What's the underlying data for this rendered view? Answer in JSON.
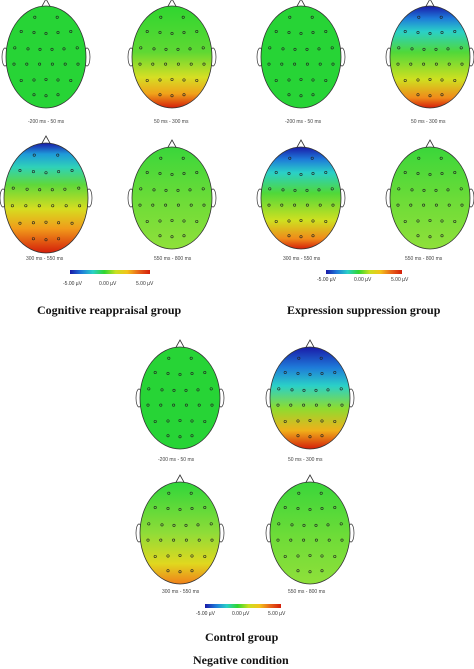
{
  "groups": [
    {
      "title": "Cognitive reappraisal group",
      "maps": [
        {
          "time_window": "-200 ms - 50 ms",
          "pattern": "neutral"
        },
        {
          "time_window": "50 ms - 300 ms",
          "pattern": "occipital-positive"
        },
        {
          "time_window": "300 ms - 550 ms",
          "pattern": "frontal-negative-occipital-positive-strong"
        },
        {
          "time_window": "550 ms - 800 ms",
          "pattern": "mild-green"
        }
      ],
      "colorbar": {
        "min": "-5.00 µV",
        "mid": "0.00 µV",
        "max": "5.00 µV"
      }
    },
    {
      "title": "Expression suppression group",
      "maps": [
        {
          "time_window": "-200 ms - 50 ms",
          "pattern": "neutral"
        },
        {
          "time_window": "50 ms - 300 ms",
          "pattern": "frontal-negative-occipital-positive"
        },
        {
          "time_window": "300 ms - 550 ms",
          "pattern": "frontal-negative-occipital-positive"
        },
        {
          "time_window": "550 ms - 800 ms",
          "pattern": "mild-green"
        }
      ],
      "colorbar": {
        "min": "-5.00 µV",
        "mid": "0.00 µV",
        "max": "5.00 µV"
      }
    },
    {
      "title": "Control group",
      "maps": [
        {
          "time_window": "-200 ms - 50 ms",
          "pattern": "neutral"
        },
        {
          "time_window": "50 ms - 300 ms",
          "pattern": "right-frontal-negative-occipital-positive"
        },
        {
          "time_window": "300 ms - 550 ms",
          "pattern": "mild-mixed"
        },
        {
          "time_window": "550 ms - 800 ms",
          "pattern": "mild-green"
        }
      ],
      "colorbar": {
        "min": "-5.00 µV",
        "mid": "0.00 µV",
        "max": "5.00 µV"
      }
    }
  ],
  "condition": "Negative condition",
  "colors": {
    "neutral": "#27d436",
    "negative": "#1a1aa8",
    "positive": "#d41e0a",
    "head_outline": "#333333",
    "electrode": "#222222"
  },
  "colorbar_stops": [
    "#1a1aa8",
    "#1e7ad9",
    "#2ad0c8",
    "#2fd630",
    "#c8e020",
    "#f3c41a",
    "#e8651a",
    "#d41e0a"
  ]
}
